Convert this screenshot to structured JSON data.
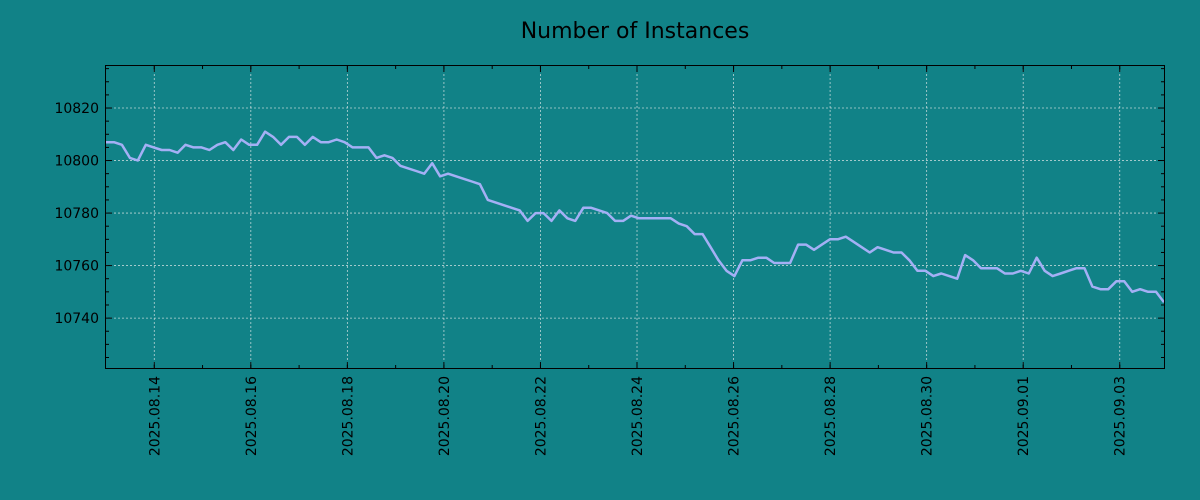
{
  "chart_data": {
    "type": "line",
    "title": "Number of Instances",
    "xlabel": "",
    "ylabel": "",
    "background_color": "#118287",
    "line_color": "#a4b0f5",
    "grid": true,
    "x_start": "2025-08-13",
    "x_end": "2025-09-03 22:00",
    "ylim": [
      10721,
      10836
    ],
    "y_ticks": [
      10740,
      10760,
      10780,
      10800,
      10820
    ],
    "x_ticks": [
      "2025.08.14",
      "2025.08.16",
      "2025.08.18",
      "2025.08.20",
      "2025.08.22",
      "2025.08.24",
      "2025.08.26",
      "2025.08.28",
      "2025.08.30",
      "2025.09.01",
      "2025.09.03"
    ],
    "series": [
      {
        "values": [
          10807,
          10807,
          10806,
          10801,
          10800,
          10806,
          10805,
          10804,
          10804,
          10803,
          10806,
          10805,
          10805,
          10804,
          10806,
          10807,
          10804,
          10808,
          10806,
          10806,
          10811,
          10809,
          10806,
          10809,
          10809,
          10806,
          10809,
          10807,
          10807,
          10808,
          10807,
          10805,
          10805,
          10805,
          10801,
          10802,
          10801,
          10798,
          10797,
          10796,
          10795,
          10799,
          10794,
          10795,
          10794,
          10793,
          10792,
          10791,
          10785,
          10784,
          10783,
          10782,
          10781,
          10777,
          10780,
          10780,
          10777,
          10781,
          10778,
          10777,
          10782,
          10782,
          10781,
          10780,
          10777,
          10777,
          10779,
          10778,
          10778,
          10778,
          10778,
          10778,
          10776,
          10775,
          10772,
          10772,
          10767,
          10762,
          10758,
          10756,
          10762,
          10762,
          10763,
          10763,
          10761,
          10761,
          10761,
          10768,
          10768,
          10766,
          10768,
          10770,
          10770,
          10771,
          10769,
          10767,
          10765,
          10767,
          10766,
          10765,
          10765,
          10762,
          10758,
          10758,
          10756,
          10757,
          10756,
          10755,
          10764,
          10762,
          10759,
          10759,
          10759,
          10757,
          10757,
          10758,
          10757,
          10763,
          10758,
          10756,
          10757,
          10758,
          10759,
          10759,
          10752,
          10751,
          10751,
          10754,
          10754,
          10750,
          10751,
          10750,
          10750,
          10746
        ]
      }
    ]
  }
}
